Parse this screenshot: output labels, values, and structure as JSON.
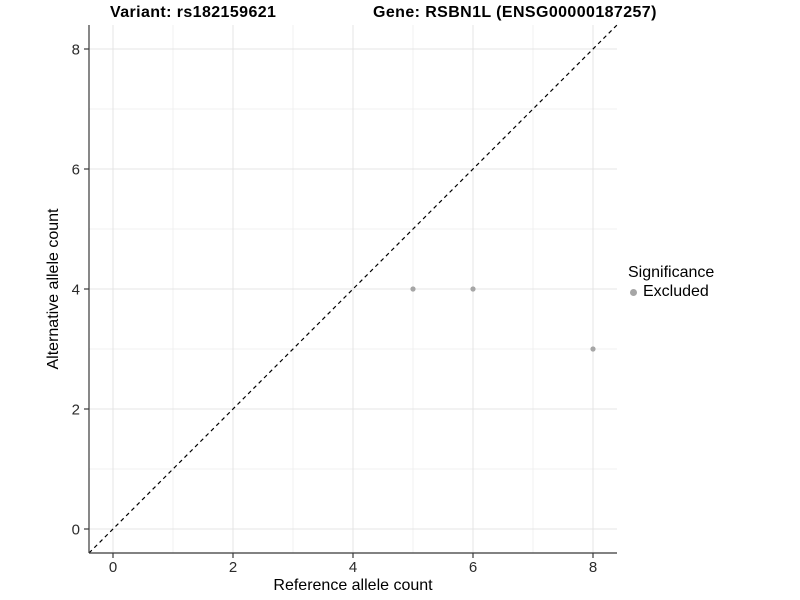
{
  "titles": {
    "variant": "Variant: rs182159621",
    "gene": "Gene: RSBN1L (ENSG00000187257)"
  },
  "chart_data": {
    "type": "scatter",
    "title_left": "Variant: rs182159621",
    "title_right": "Gene: RSBN1L (ENSG00000187257)",
    "xlabel": "Reference allele count",
    "ylabel": "Alternative allele count",
    "xlim": [
      -0.4,
      8.4
    ],
    "ylim": [
      -0.4,
      8.4
    ],
    "xticks": [
      0,
      2,
      4,
      6,
      8
    ],
    "yticks": [
      0,
      2,
      4,
      6,
      8
    ],
    "x_minor_ticks": [
      1,
      3,
      5,
      7
    ],
    "y_minor_ticks": [
      1,
      3,
      5,
      7
    ],
    "grid": true,
    "reference_line": {
      "type": "identity y=x",
      "style": "dashed",
      "color": "#000000"
    },
    "series": [
      {
        "name": "Excluded",
        "color": "#a6a6a6",
        "points": [
          [
            5,
            4
          ],
          [
            6,
            4
          ],
          [
            8,
            3
          ]
        ]
      }
    ],
    "legend": {
      "title": "Significance",
      "position": "right",
      "items": [
        {
          "label": "Excluded",
          "color": "#a6a6a6"
        }
      ]
    }
  },
  "style_colors": {
    "axis_line": "#383838",
    "grid_major": "#e4e4e4",
    "grid_minor": "#f0f0f0",
    "point": "#a6a6a6",
    "text": "#000000"
  }
}
